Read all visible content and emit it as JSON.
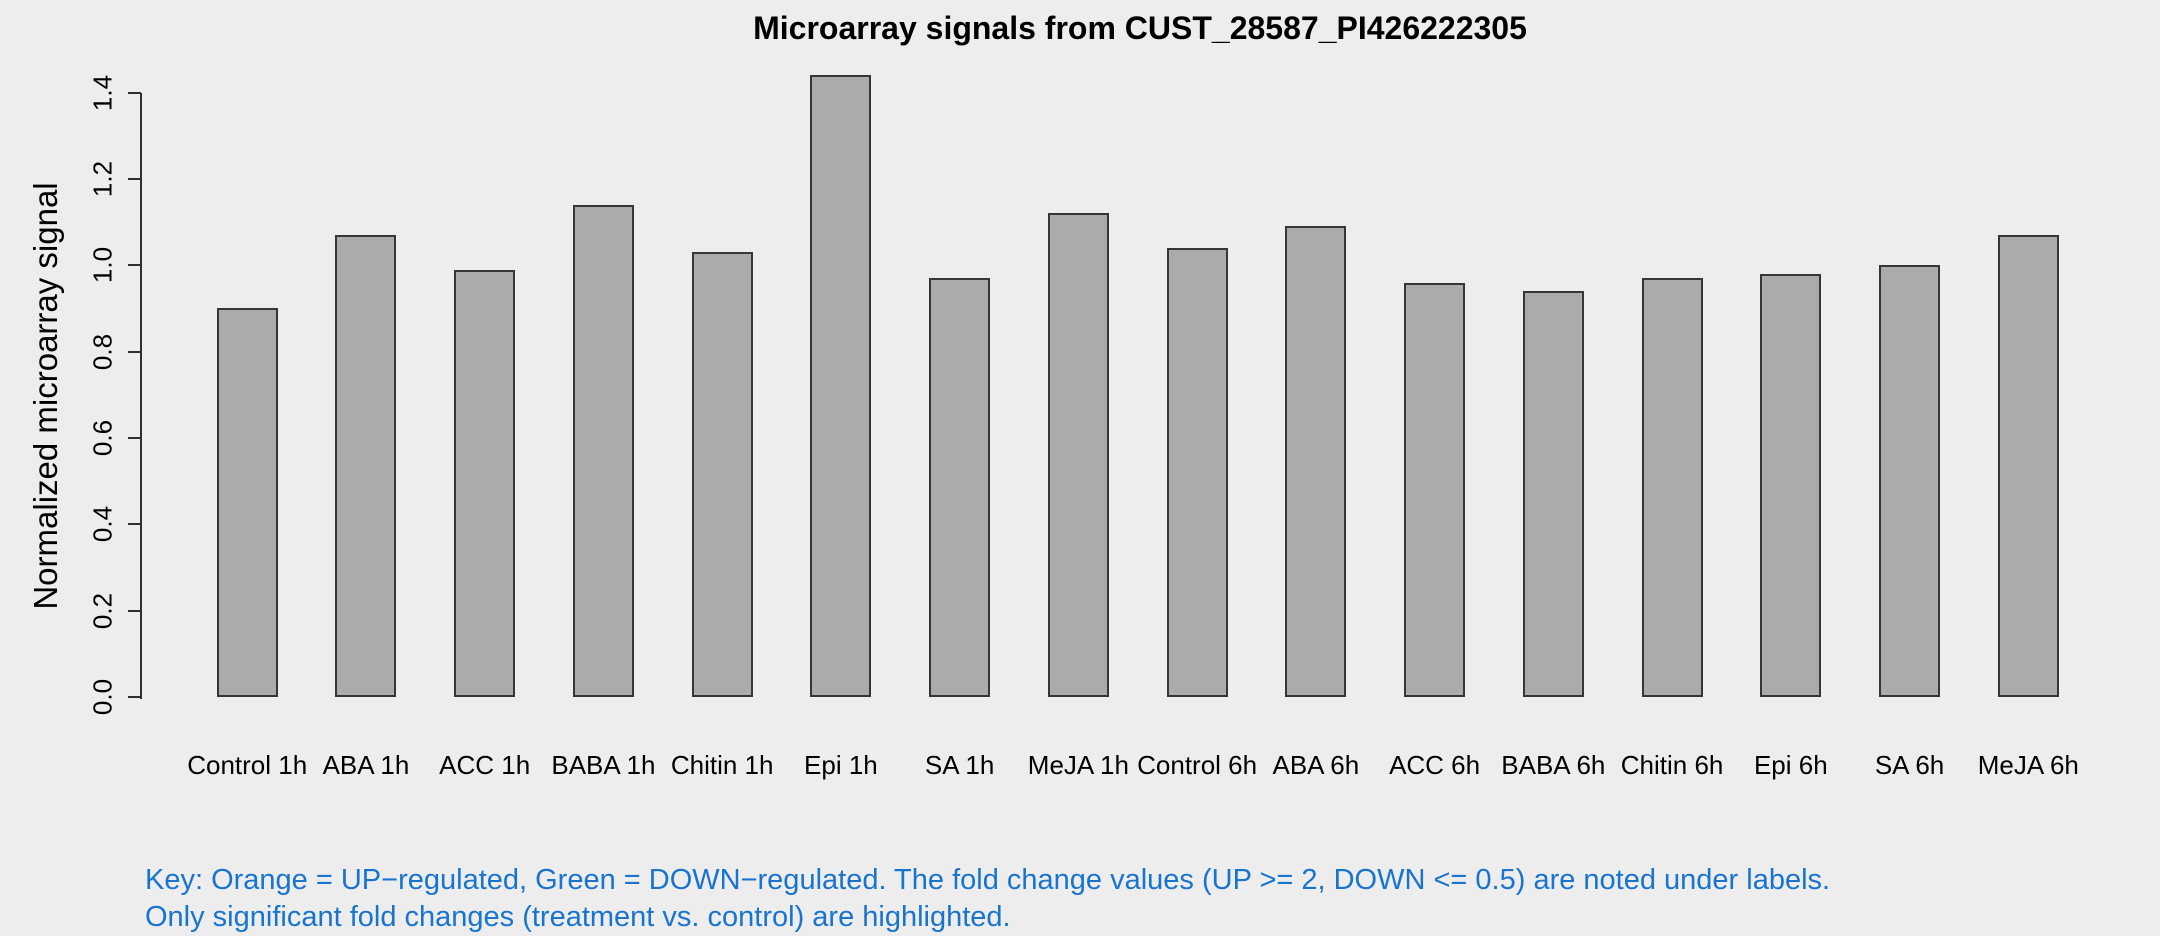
{
  "title": "Microarray signals from CUST_28587_PI426222305",
  "chart_data": {
    "type": "bar",
    "title": "Microarray signals from CUST_28587_PI426222305",
    "xlabel": "",
    "ylabel": "Normalized microarray signal",
    "ylim": [
      0,
      1.4
    ],
    "ytick_values": [
      0.0,
      0.2,
      0.4,
      0.6,
      0.8,
      1.0,
      1.2,
      1.4
    ],
    "ytick_labels": [
      "0.0",
      "0.2",
      "0.4",
      "0.6",
      "0.8",
      "1.0",
      "1.2",
      "1.4"
    ],
    "grid": false,
    "legend_position": "none",
    "categories": [
      "Control 1h",
      "ABA 1h",
      "ACC 1h",
      "BABA 1h",
      "Chitin 1h",
      "Epi 1h",
      "SA 1h",
      "MeJA 1h",
      "Control 6h",
      "ABA 6h",
      "ACC 6h",
      "BABA 6h",
      "Chitin 6h",
      "Epi 6h",
      "SA 6h",
      "MeJA 6h"
    ],
    "values": [
      0.9,
      1.07,
      0.99,
      1.14,
      1.03,
      1.44,
      0.97,
      1.12,
      1.04,
      1.09,
      0.96,
      0.94,
      0.97,
      0.98,
      1.0,
      1.07
    ],
    "bar_fill_color": "#ababab",
    "bar_border_color": "#363636"
  },
  "footer": {
    "line1": "Key: Orange = UP−regulated, Green = DOWN−regulated. The fold change values (UP >= 2, DOWN <= 0.5) are noted under labels.",
    "line2": "Only significant fold changes (treatment vs. control) are highlighted.",
    "text_color": "#1874cd"
  },
  "colors": {
    "background": "#ededed",
    "axis_and_text": "#000000"
  }
}
